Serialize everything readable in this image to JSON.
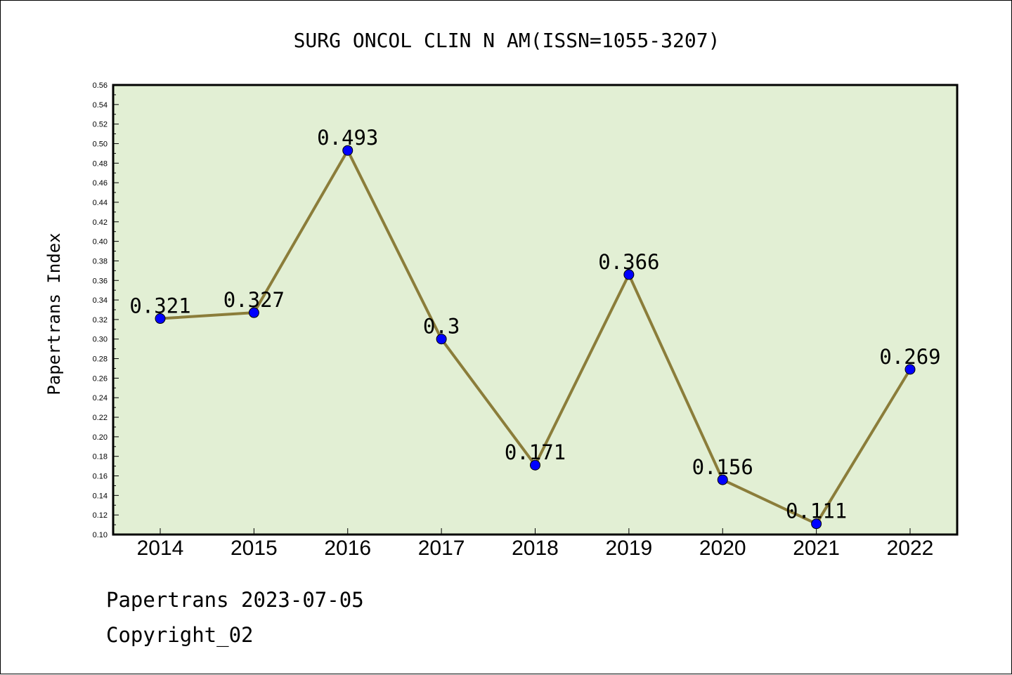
{
  "footer": {
    "line1": "Papertrans 2023-07-05",
    "line2": "Copyright_02"
  },
  "colors": {
    "plot_background": "#e2efd4",
    "line": "#8b7d3a",
    "marker": "#0000ff"
  },
  "chart_data": {
    "type": "line",
    "title": "SURG ONCOL CLIN N AM(ISSN=1055-3207)",
    "xlabel": "",
    "ylabel": "Papertrans Index",
    "categories": [
      "2014",
      "2015",
      "2016",
      "2017",
      "2018",
      "2019",
      "2020",
      "2021",
      "2022"
    ],
    "series": [
      {
        "values": [
          0.321,
          0.327,
          0.493,
          0.3,
          0.171,
          0.366,
          0.156,
          0.111,
          0.269
        ],
        "data_labels": [
          "0.321",
          "0.327",
          "0.493",
          "0.3",
          "0.171",
          "0.366",
          "0.156",
          "0.111",
          "0.269"
        ]
      }
    ],
    "ylim": [
      0.1,
      0.56
    ],
    "yticks": [
      "0.10",
      "0.12",
      "0.14",
      "0.16",
      "0.18",
      "0.20",
      "0.22",
      "0.24",
      "0.26",
      "0.28",
      "0.30",
      "0.32",
      "0.34",
      "0.36",
      "0.38",
      "0.40",
      "0.42",
      "0.44",
      "0.46",
      "0.48",
      "0.50",
      "0.52",
      "0.54",
      "0.56"
    ],
    "grid": false,
    "legend": "none"
  }
}
